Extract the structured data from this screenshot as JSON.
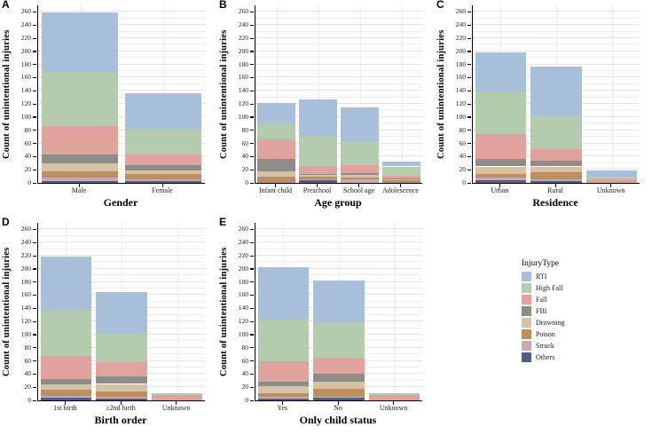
{
  "figure": {
    "ylabel": "Count of unintentional injuries",
    "y_ticks": [
      0,
      20,
      40,
      60,
      80,
      100,
      120,
      140,
      160,
      180,
      200,
      220,
      240,
      260
    ],
    "background": "#ffffff",
    "axis_color": "#000000",
    "grid_major_color": "#e3e3e3",
    "grid_minor_color": "#f0f0f0"
  },
  "legend": {
    "title": "InjuryType",
    "items": [
      {
        "label": "RTI",
        "color": "#a8bfda"
      },
      {
        "label": "High Fall",
        "color": "#b5cbae"
      },
      {
        "label": "Fall",
        "color": "#dfa29c"
      },
      {
        "label": "FBI",
        "color": "#8e8c88"
      },
      {
        "label": "Drowning",
        "color": "#d3c2a3"
      },
      {
        "label": "Poison",
        "color": "#bd8e5f"
      },
      {
        "label": "Struck",
        "color": "#c8aab2"
      },
      {
        "label": "Others",
        "color": "#4f5e87"
      }
    ]
  },
  "chart_data": [
    {
      "panel": "A",
      "type": "bar",
      "stacked": true,
      "title": "",
      "xlabel": "Gender",
      "ylabel": "Count of unintentional injuries",
      "ylim": [
        0,
        260
      ],
      "grid": true,
      "legend_position": "right",
      "categories": [
        "Male",
        "Female"
      ],
      "series": [
        {
          "name": "RTI",
          "values": [
            92,
            55
          ]
        },
        {
          "name": "High Fall",
          "values": [
            80,
            38
          ]
        },
        {
          "name": "Fall",
          "values": [
            44,
            16
          ]
        },
        {
          "name": "FBI",
          "values": [
            13,
            8
          ]
        },
        {
          "name": "Drowning",
          "values": [
            13,
            5
          ]
        },
        {
          "name": "Poison",
          "values": [
            9,
            8
          ]
        },
        {
          "name": "Struck",
          "values": [
            5,
            3
          ]
        },
        {
          "name": "Others",
          "values": [
            3,
            3
          ]
        }
      ],
      "totals": [
        259,
        136
      ]
    },
    {
      "panel": "B",
      "type": "bar",
      "stacked": true,
      "title": "",
      "xlabel": "Age group",
      "ylabel": "Count of unintentional injuries",
      "ylim": [
        0,
        260
      ],
      "grid": true,
      "categories": [
        "Infant child",
        "Preschool",
        "School age",
        "Adolescence"
      ],
      "series": [
        {
          "name": "RTI",
          "values": [
            30,
            57,
            52,
            7
          ]
        },
        {
          "name": "High Fall",
          "values": [
            25,
            44,
            36,
            14
          ]
        },
        {
          "name": "Fall",
          "values": [
            30,
            13,
            12,
            4
          ]
        },
        {
          "name": "FBI",
          "values": [
            18,
            1,
            3,
            1
          ]
        },
        {
          "name": "Drowning",
          "values": [
            8,
            3,
            4,
            2
          ]
        },
        {
          "name": "Poison",
          "values": [
            10,
            3,
            2,
            4
          ]
        },
        {
          "name": "Struck",
          "values": [
            0,
            2,
            6,
            0
          ]
        },
        {
          "name": "Others",
          "values": [
            0,
            4,
            0,
            0
          ]
        }
      ],
      "totals": [
        121,
        127,
        115,
        32
      ]
    },
    {
      "panel": "C",
      "type": "bar",
      "stacked": true,
      "title": "",
      "xlabel": "Residence",
      "ylabel": "Count of unintentional injuries",
      "ylim": [
        0,
        260
      ],
      "grid": true,
      "categories": [
        "Urban",
        "Rural",
        "Unknown"
      ],
      "series": [
        {
          "name": "RTI",
          "values": [
            61,
            76,
            10
          ]
        },
        {
          "name": "High Fall",
          "values": [
            64,
            50,
            4
          ]
        },
        {
          "name": "Fall",
          "values": [
            37,
            17,
            5
          ]
        },
        {
          "name": "FBI",
          "values": [
            12,
            9,
            0
          ]
        },
        {
          "name": "Drowning",
          "values": [
            11,
            9,
            0
          ]
        },
        {
          "name": "Poison",
          "values": [
            6,
            11,
            0
          ]
        },
        {
          "name": "Struck",
          "values": [
            4,
            2,
            0
          ]
        },
        {
          "name": "Others",
          "values": [
            4,
            3,
            0
          ]
        }
      ],
      "totals": [
        199,
        177,
        19
      ]
    },
    {
      "panel": "D",
      "type": "bar",
      "stacked": true,
      "title": "",
      "xlabel": "Birth order",
      "ylabel": "Count of unintentional injuries",
      "ylim": [
        0,
        260
      ],
      "grid": true,
      "categories": [
        "1st birth",
        "≥2nd birth",
        "Unknown"
      ],
      "series": [
        {
          "name": "RTI",
          "values": [
            82,
            62,
            2
          ]
        },
        {
          "name": "High Fall",
          "values": [
            70,
            45,
            1
          ]
        },
        {
          "name": "Fall",
          "values": [
            34,
            21,
            8
          ]
        },
        {
          "name": "FBI",
          "values": [
            9,
            12,
            0
          ]
        },
        {
          "name": "Drowning",
          "values": [
            8,
            11,
            0
          ]
        },
        {
          "name": "Poison",
          "values": [
            9,
            9,
            0
          ]
        },
        {
          "name": "Struck",
          "values": [
            3,
            2,
            0
          ]
        },
        {
          "name": "Others",
          "values": [
            4,
            3,
            0
          ]
        }
      ],
      "totals": [
        219,
        165,
        11
      ]
    },
    {
      "panel": "E",
      "type": "bar",
      "stacked": true,
      "title": "",
      "xlabel": "Only child status",
      "ylabel": "Count of unintentional injuries",
      "ylim": [
        0,
        260
      ],
      "grid": true,
      "categories": [
        "Yes",
        "No",
        "Unknown"
      ],
      "series": [
        {
          "name": "RTI",
          "values": [
            79,
            65,
            1
          ]
        },
        {
          "name": "High Fall",
          "values": [
            63,
            52,
            2
          ]
        },
        {
          "name": "Fall",
          "values": [
            31,
            24,
            8
          ]
        },
        {
          "name": "FBI",
          "values": [
            7,
            12,
            0
          ]
        },
        {
          "name": "Drowning",
          "values": [
            11,
            11,
            0
          ]
        },
        {
          "name": "Poison",
          "values": [
            5,
            12,
            0
          ]
        },
        {
          "name": "Struck",
          "values": [
            3,
            2,
            0
          ]
        },
        {
          "name": "Others",
          "values": [
            3,
            4,
            0
          ]
        }
      ],
      "totals": [
        202,
        182,
        11
      ]
    }
  ]
}
